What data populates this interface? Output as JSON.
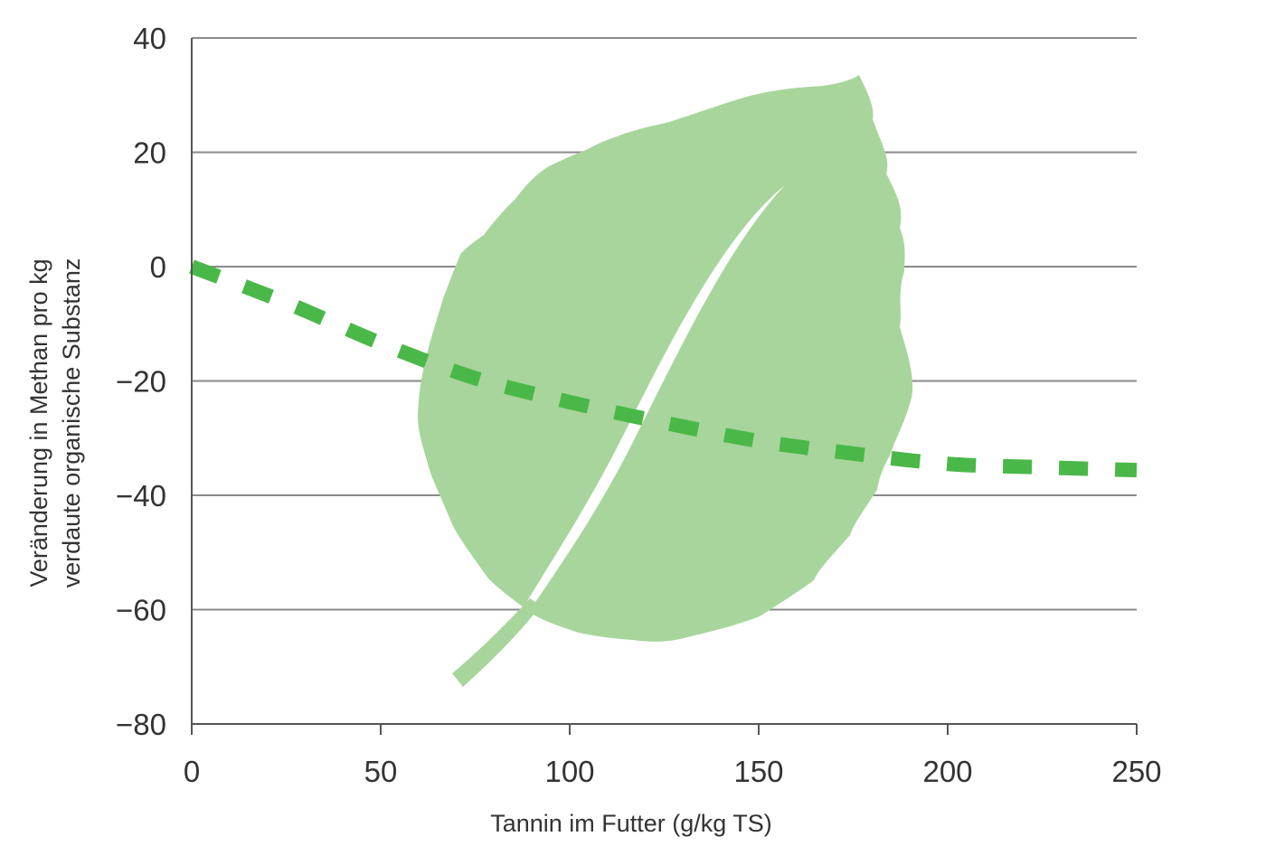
{
  "chart_data": {
    "type": "line",
    "title": "",
    "xlabel": "Tannin im Futter (g/kg TS)",
    "ylabel_lines": [
      "Veränderung in Methan pro kg",
      "verdaute organische Substanz"
    ],
    "xlim": [
      0,
      250
    ],
    "ylim": [
      -80,
      40
    ],
    "xticks": [
      0,
      50,
      100,
      150,
      200,
      250
    ],
    "yticks": [
      40,
      20,
      0,
      -20,
      -40,
      -60,
      -80
    ],
    "xtick_labels": [
      "0",
      "50",
      "100",
      "150",
      "200",
      "250"
    ],
    "ytick_labels": [
      "40",
      "20",
      "0",
      "−20",
      "−40",
      "−60",
      "−80"
    ],
    "grid": "horizontal",
    "series": [
      {
        "style": "dashed",
        "color": "#4ab848",
        "x": [
          0,
          25,
          50,
          75,
          100,
          125,
          150,
          175,
          200,
          225,
          250
        ],
        "y": [
          0,
          -6.3,
          -13.4,
          -19.5,
          -23.7,
          -27.3,
          -30.5,
          -32.7,
          -34.5,
          -35.1,
          -35.6
        ]
      }
    ],
    "decoration": {
      "icon": "leaf-icon",
      "color": "#a8d59c"
    }
  }
}
